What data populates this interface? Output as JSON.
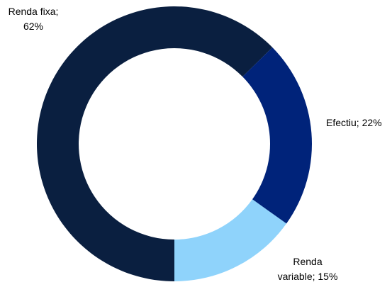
{
  "chart_data": {
    "type": "donut",
    "values": [
      62,
      22,
      15
    ],
    "value_labels": [
      "Renda fixa; 62%",
      "Efectiu; 22%",
      "Renda variable; 15%"
    ],
    "colors": [
      "#0a1f40",
      "#00237a",
      "#8fd3fb"
    ]
  }
}
